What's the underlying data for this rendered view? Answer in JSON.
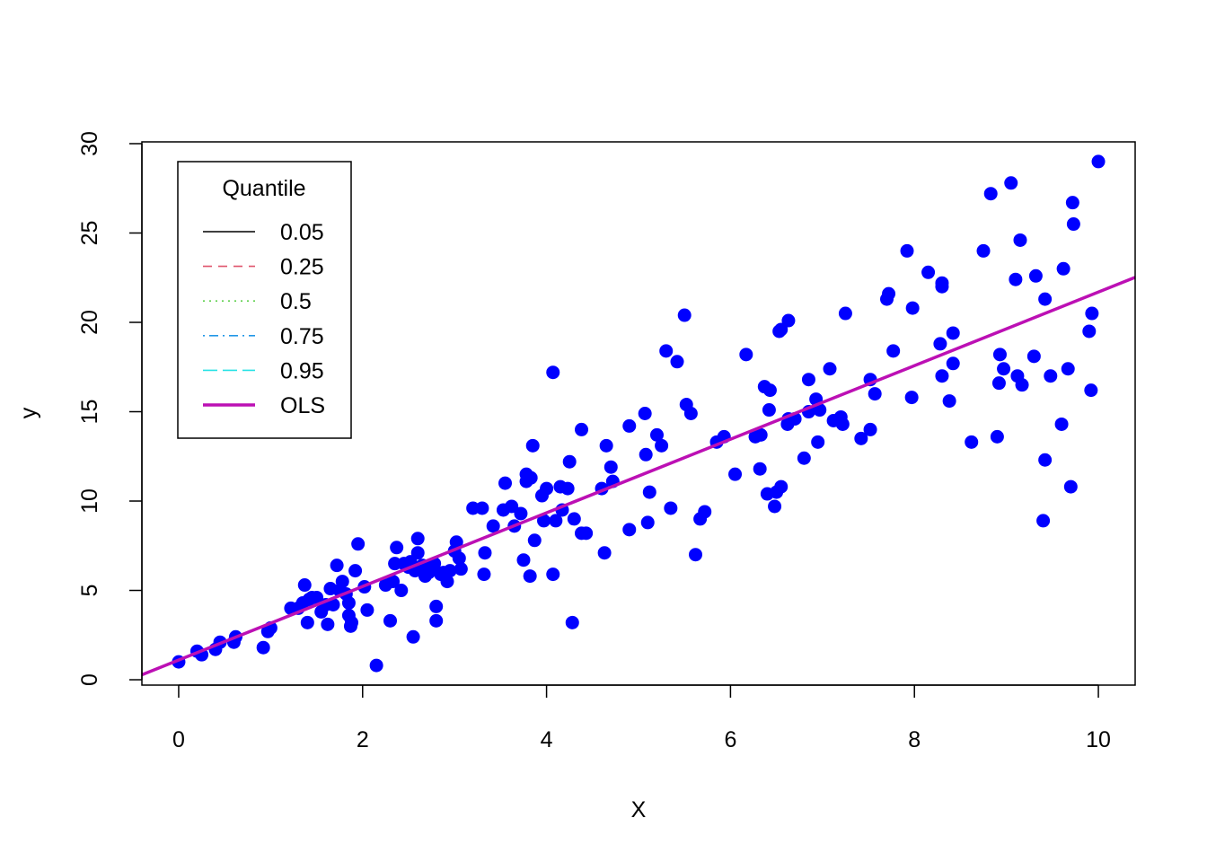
{
  "chart_data": {
    "type": "scatter",
    "xlabel": "X",
    "ylabel": "y",
    "xlim": [
      -0.4,
      10.4
    ],
    "ylim": [
      -0.3,
      30.1
    ],
    "xticks": [
      0,
      2,
      4,
      6,
      8,
      10
    ],
    "yticks": [
      0,
      5,
      10,
      15,
      20,
      25,
      30
    ],
    "grid": false,
    "point_color": "#0000ff",
    "legend": {
      "title": "Quantile",
      "position": "top-left",
      "entries": [
        {
          "label": "0.05",
          "color": "#000000",
          "dash": "solid"
        },
        {
          "label": "0.25",
          "color": "#df536b",
          "dash": "dashed"
        },
        {
          "label": "0.5",
          "color": "#61d04f",
          "dash": "dotted"
        },
        {
          "label": "0.75",
          "color": "#2297e6",
          "dash": "dotdash"
        },
        {
          "label": "0.95",
          "color": "#28e2e5",
          "dash": "longdash"
        },
        {
          "label": "OLS",
          "color": "#bc10b4",
          "dash": "solid-thick"
        }
      ]
    },
    "lines": [
      {
        "name": "OLS",
        "color": "#bc10b4",
        "x": [
          -0.4,
          10.4
        ],
        "y": [
          0.28,
          22.52
        ]
      }
    ],
    "points": [
      [
        0.0,
        1.0
      ],
      [
        0.2,
        1.6
      ],
      [
        0.25,
        1.4
      ],
      [
        0.4,
        1.7
      ],
      [
        0.45,
        2.1
      ],
      [
        0.6,
        2.1
      ],
      [
        0.62,
        2.4
      ],
      [
        0.92,
        1.8
      ],
      [
        0.97,
        2.7
      ],
      [
        1.0,
        2.9
      ],
      [
        1.22,
        4.0
      ],
      [
        1.3,
        4.0
      ],
      [
        1.35,
        4.3
      ],
      [
        1.37,
        5.3
      ],
      [
        1.4,
        3.2
      ],
      [
        1.42,
        4.5
      ],
      [
        1.45,
        4.6
      ],
      [
        1.5,
        4.6
      ],
      [
        1.55,
        3.8
      ],
      [
        1.6,
        4.2
      ],
      [
        1.62,
        3.1
      ],
      [
        1.65,
        5.1
      ],
      [
        1.68,
        4.2
      ],
      [
        1.72,
        6.4
      ],
      [
        1.75,
        5.0
      ],
      [
        1.78,
        5.5
      ],
      [
        1.82,
        4.8
      ],
      [
        1.85,
        3.6
      ],
      [
        1.85,
        4.3
      ],
      [
        1.87,
        3.0
      ],
      [
        1.88,
        3.2
      ],
      [
        1.92,
        6.1
      ],
      [
        1.95,
        7.6
      ],
      [
        2.02,
        5.2
      ],
      [
        2.05,
        3.9
      ],
      [
        2.15,
        0.8
      ],
      [
        2.25,
        5.3
      ],
      [
        2.3,
        3.3
      ],
      [
        2.33,
        5.5
      ],
      [
        2.35,
        6.5
      ],
      [
        2.37,
        7.4
      ],
      [
        2.42,
        5.0
      ],
      [
        2.45,
        6.5
      ],
      [
        2.5,
        6.3
      ],
      [
        2.52,
        6.6
      ],
      [
        2.55,
        2.4
      ],
      [
        2.57,
        6.1
      ],
      [
        2.6,
        7.1
      ],
      [
        2.6,
        7.9
      ],
      [
        2.65,
        6.4
      ],
      [
        2.68,
        5.8
      ],
      [
        2.72,
        6.0
      ],
      [
        2.75,
        6.3
      ],
      [
        2.78,
        6.5
      ],
      [
        2.8,
        3.3
      ],
      [
        2.8,
        4.1
      ],
      [
        2.85,
        5.9
      ],
      [
        2.88,
        6.0
      ],
      [
        2.92,
        5.5
      ],
      [
        2.95,
        6.1
      ],
      [
        3.0,
        7.2
      ],
      [
        3.02,
        7.7
      ],
      [
        3.05,
        6.8
      ],
      [
        3.07,
        6.2
      ],
      [
        3.2,
        9.6
      ],
      [
        3.3,
        9.6
      ],
      [
        3.32,
        5.9
      ],
      [
        3.33,
        7.1
      ],
      [
        3.42,
        8.6
      ],
      [
        3.53,
        9.5
      ],
      [
        3.55,
        11.0
      ],
      [
        3.62,
        9.7
      ],
      [
        3.65,
        8.6
      ],
      [
        3.72,
        9.3
      ],
      [
        3.75,
        6.7
      ],
      [
        3.78,
        11.1
      ],
      [
        3.78,
        11.5
      ],
      [
        3.82,
        5.8
      ],
      [
        3.83,
        11.3
      ],
      [
        3.85,
        13.1
      ],
      [
        3.87,
        7.8
      ],
      [
        3.95,
        10.3
      ],
      [
        3.97,
        8.9
      ],
      [
        4.0,
        10.7
      ],
      [
        4.07,
        5.9
      ],
      [
        4.07,
        17.2
      ],
      [
        4.1,
        8.9
      ],
      [
        4.15,
        10.8
      ],
      [
        4.17,
        9.5
      ],
      [
        4.23,
        10.7
      ],
      [
        4.25,
        12.2
      ],
      [
        4.28,
        3.2
      ],
      [
        4.3,
        9.0
      ],
      [
        4.38,
        8.2
      ],
      [
        4.38,
        14.0
      ],
      [
        4.43,
        8.2
      ],
      [
        4.6,
        10.7
      ],
      [
        4.63,
        7.1
      ],
      [
        4.65,
        13.1
      ],
      [
        4.7,
        11.9
      ],
      [
        4.72,
        11.1
      ],
      [
        4.9,
        8.4
      ],
      [
        4.9,
        14.2
      ],
      [
        5.07,
        14.9
      ],
      [
        5.08,
        12.6
      ],
      [
        5.1,
        8.8
      ],
      [
        5.12,
        10.5
      ],
      [
        5.2,
        13.7
      ],
      [
        5.25,
        13.1
      ],
      [
        5.3,
        18.4
      ],
      [
        5.35,
        9.6
      ],
      [
        5.42,
        17.8
      ],
      [
        5.5,
        20.4
      ],
      [
        5.52,
        15.4
      ],
      [
        5.57,
        14.9
      ],
      [
        5.62,
        7.0
      ],
      [
        5.67,
        9.0
      ],
      [
        5.72,
        9.4
      ],
      [
        5.85,
        13.3
      ],
      [
        5.93,
        13.6
      ],
      [
        6.05,
        11.5
      ],
      [
        6.17,
        18.2
      ],
      [
        6.27,
        13.6
      ],
      [
        6.32,
        11.8
      ],
      [
        6.33,
        13.7
      ],
      [
        6.37,
        16.4
      ],
      [
        6.4,
        10.4
      ],
      [
        6.42,
        15.1
      ],
      [
        6.43,
        16.2
      ],
      [
        6.48,
        9.7
      ],
      [
        6.5,
        10.5
      ],
      [
        6.53,
        19.5
      ],
      [
        6.55,
        19.6
      ],
      [
        6.55,
        10.8
      ],
      [
        6.62,
        14.3
      ],
      [
        6.63,
        14.6
      ],
      [
        6.63,
        20.1
      ],
      [
        6.7,
        14.6
      ],
      [
        6.8,
        12.4
      ],
      [
        6.85,
        15.0
      ],
      [
        6.85,
        16.8
      ],
      [
        6.93,
        15.7
      ],
      [
        6.95,
        13.3
      ],
      [
        6.97,
        15.1
      ],
      [
        7.08,
        17.4
      ],
      [
        7.12,
        14.5
      ],
      [
        7.2,
        14.7
      ],
      [
        7.22,
        14.3
      ],
      [
        7.25,
        20.5
      ],
      [
        7.42,
        13.5
      ],
      [
        7.52,
        14.0
      ],
      [
        7.52,
        16.8
      ],
      [
        7.57,
        16.0
      ],
      [
        7.7,
        21.3
      ],
      [
        7.72,
        21.6
      ],
      [
        7.77,
        18.4
      ],
      [
        7.92,
        24.0
      ],
      [
        7.97,
        15.8
      ],
      [
        7.98,
        20.8
      ],
      [
        8.15,
        22.8
      ],
      [
        8.28,
        18.8
      ],
      [
        8.3,
        22.0
      ],
      [
        8.3,
        22.2
      ],
      [
        8.3,
        17.0
      ],
      [
        8.38,
        15.6
      ],
      [
        8.42,
        19.4
      ],
      [
        8.42,
        17.7
      ],
      [
        8.62,
        13.3
      ],
      [
        8.75,
        24.0
      ],
      [
        8.83,
        27.2
      ],
      [
        8.9,
        13.6
      ],
      [
        8.92,
        16.6
      ],
      [
        8.93,
        18.2
      ],
      [
        8.97,
        17.4
      ],
      [
        9.05,
        27.8
      ],
      [
        9.1,
        22.4
      ],
      [
        9.12,
        17.0
      ],
      [
        9.15,
        24.6
      ],
      [
        9.17,
        16.5
      ],
      [
        9.3,
        18.1
      ],
      [
        9.32,
        22.6
      ],
      [
        9.4,
        8.9
      ],
      [
        9.42,
        12.3
      ],
      [
        9.42,
        21.3
      ],
      [
        9.48,
        17.0
      ],
      [
        9.6,
        14.3
      ],
      [
        9.62,
        23.0
      ],
      [
        9.67,
        17.4
      ],
      [
        9.7,
        10.8
      ],
      [
        9.72,
        26.7
      ],
      [
        9.73,
        25.5
      ],
      [
        9.9,
        19.5
      ],
      [
        9.92,
        16.2
      ],
      [
        9.93,
        20.5
      ],
      [
        10.0,
        29.0
      ]
    ]
  }
}
